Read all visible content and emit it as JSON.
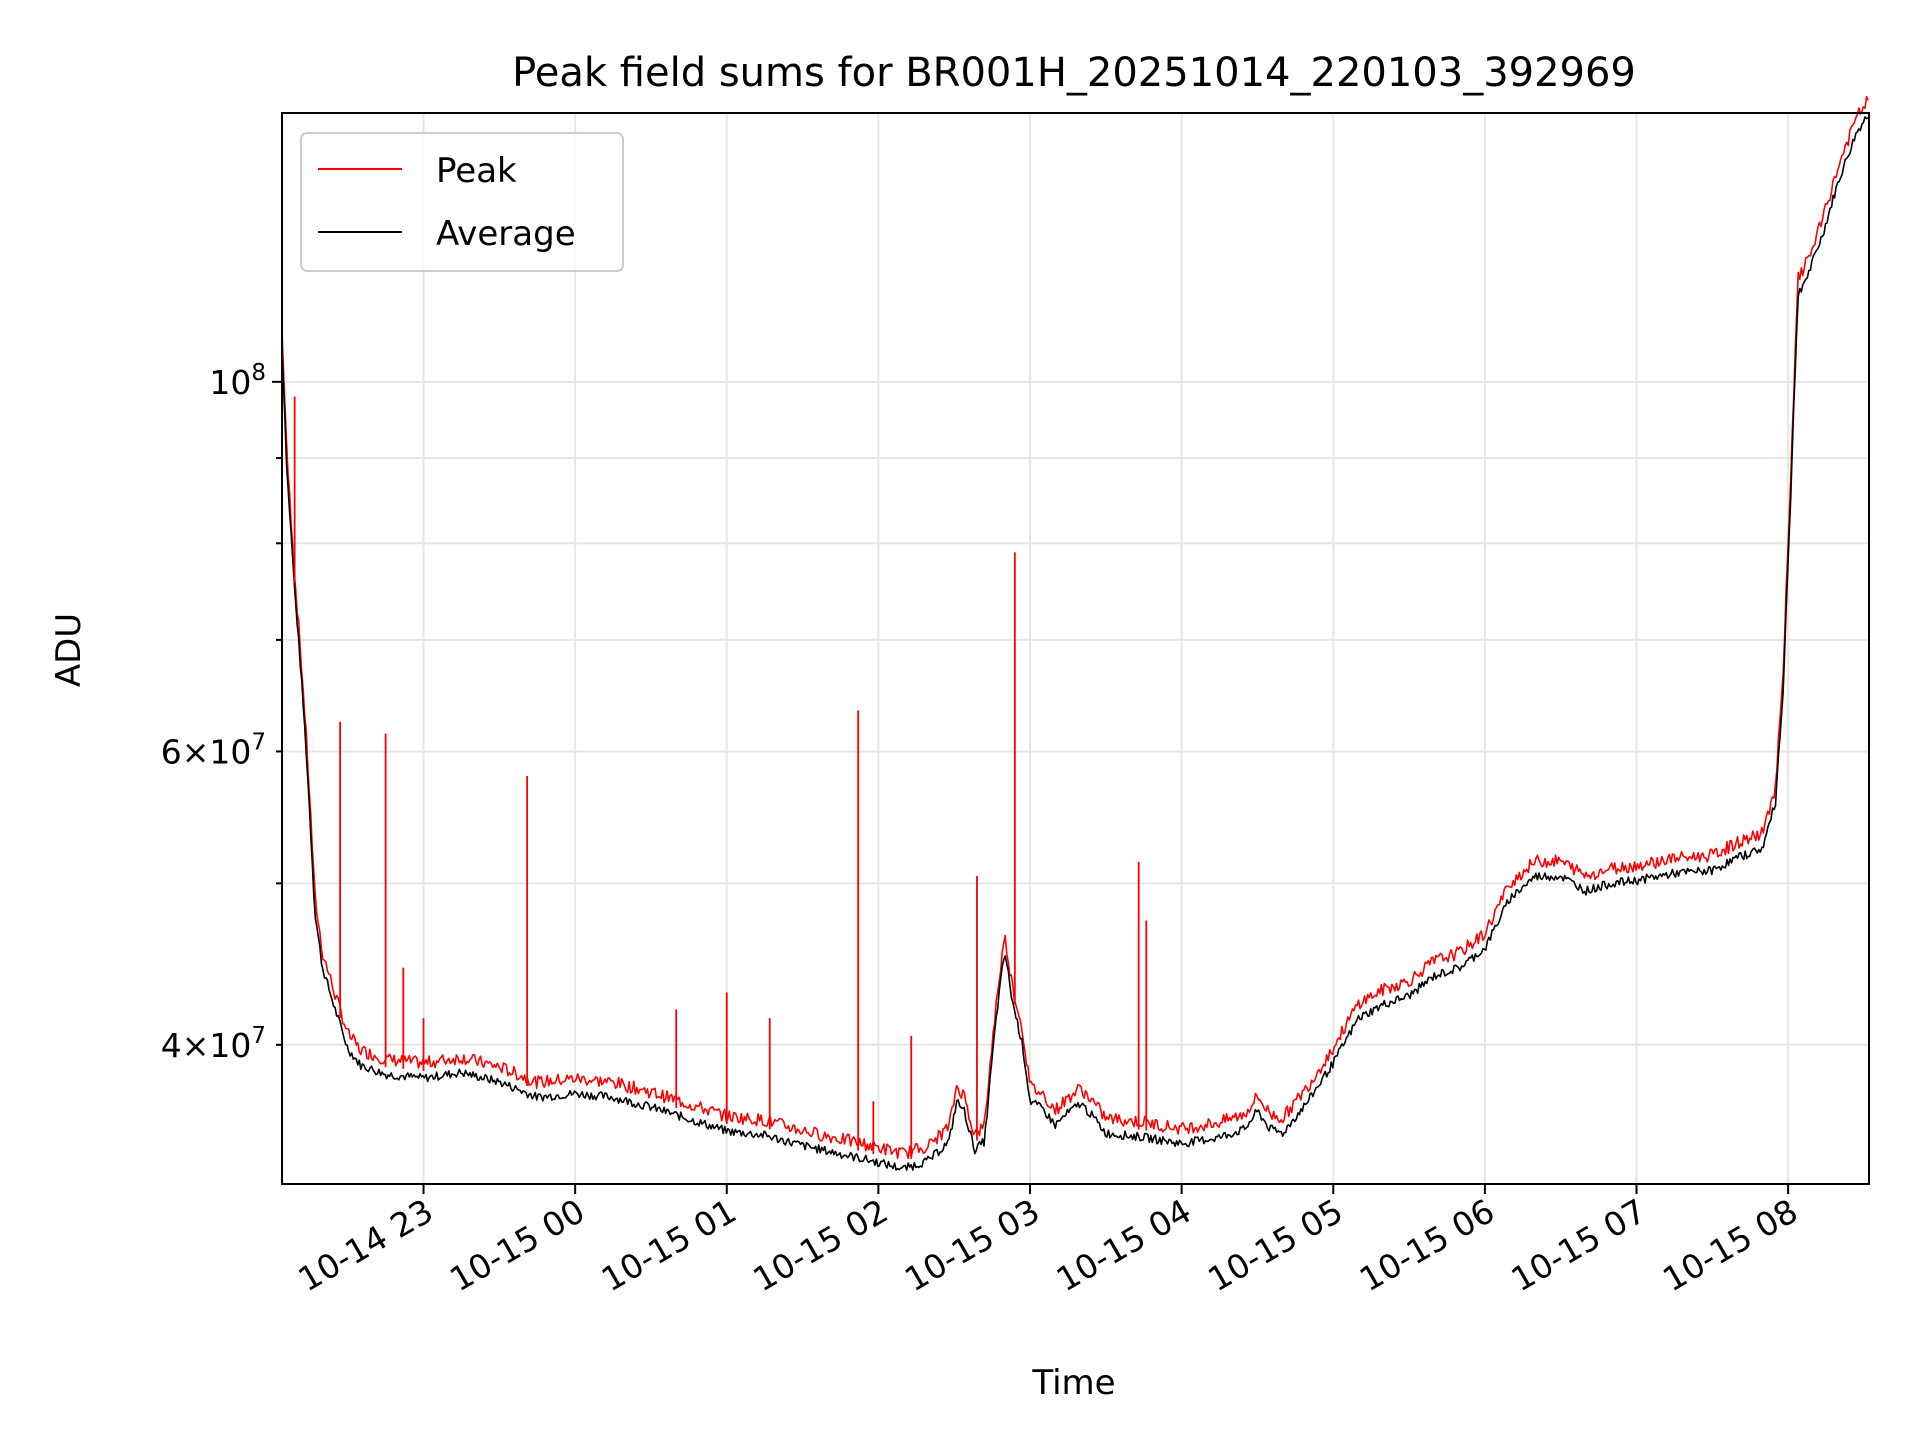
{
  "chart_data": {
    "type": "line",
    "title": "Peak field sums for BR001H_20251014_220103_392969",
    "xlabel": "Time",
    "ylabel": "ADU",
    "x_range": [
      "2025-10-14 22:04",
      "2025-10-15 08:32"
    ],
    "ylim": [
      33000000,
      145000000
    ],
    "yscale": "log",
    "grid": true,
    "legend_position": "upper-left",
    "x_ticks": [
      {
        "value": "2025-10-14 23:00",
        "label": "10-14 23"
      },
      {
        "value": "2025-10-15 00:00",
        "label": "10-15 00"
      },
      {
        "value": "2025-10-15 01:00",
        "label": "10-15 01"
      },
      {
        "value": "2025-10-15 02:00",
        "label": "10-15 02"
      },
      {
        "value": "2025-10-15 03:00",
        "label": "10-15 03"
      },
      {
        "value": "2025-10-15 04:00",
        "label": "10-15 04"
      },
      {
        "value": "2025-10-15 05:00",
        "label": "10-15 05"
      },
      {
        "value": "2025-10-15 06:00",
        "label": "10-15 06"
      },
      {
        "value": "2025-10-15 07:00",
        "label": "10-15 07"
      },
      {
        "value": "2025-10-15 08:00",
        "label": "10-15 08"
      }
    ],
    "y_major_ticks": [
      {
        "value": 100000000,
        "base": "10",
        "exp": "8"
      }
    ],
    "y_minor_ticks": [
      {
        "value": 40000000,
        "mant": "4",
        "exp": "7"
      },
      {
        "value": 60000000,
        "mant": "6",
        "exp": "7"
      }
    ],
    "y_minor_unlabeled": [
      50000000,
      70000000,
      80000000,
      90000000
    ],
    "series": [
      {
        "name": "Average",
        "color": "#000000",
        "points": [
          [
            "2025-10-14 22:04",
            105000000
          ],
          [
            "2025-10-14 22:06",
            88000000
          ],
          [
            "2025-10-14 22:09",
            75000000
          ],
          [
            "2025-10-14 22:13",
            62000000
          ],
          [
            "2025-10-14 22:17",
            48000000
          ],
          [
            "2025-10-14 22:20",
            44500000
          ],
          [
            "2025-10-14 22:25",
            42000000
          ],
          [
            "2025-10-14 22:30",
            39800000
          ],
          [
            "2025-10-14 22:35",
            38900000
          ],
          [
            "2025-10-14 22:45",
            38400000
          ],
          [
            "2025-10-14 23:00",
            38200000
          ],
          [
            "2025-10-14 23:15",
            38500000
          ],
          [
            "2025-10-14 23:30",
            38000000
          ],
          [
            "2025-10-14 23:45",
            37200000
          ],
          [
            "2025-10-15 00:00",
            37400000
          ],
          [
            "2025-10-15 00:15",
            37200000
          ],
          [
            "2025-10-15 00:30",
            36700000
          ],
          [
            "2025-10-15 00:45",
            36100000
          ],
          [
            "2025-10-15 01:00",
            35500000
          ],
          [
            "2025-10-15 01:15",
            35300000
          ],
          [
            "2025-10-15 01:30",
            34800000
          ],
          [
            "2025-10-15 01:45",
            34400000
          ],
          [
            "2025-10-15 02:00",
            34000000
          ],
          [
            "2025-10-15 02:10",
            33700000
          ],
          [
            "2025-10-15 02:20",
            34100000
          ],
          [
            "2025-10-15 02:28",
            35000000
          ],
          [
            "2025-10-15 02:31",
            37000000
          ],
          [
            "2025-10-15 02:34",
            36500000
          ],
          [
            "2025-10-15 02:38",
            34600000
          ],
          [
            "2025-10-15 02:42",
            35000000
          ],
          [
            "2025-10-15 02:47",
            42000000
          ],
          [
            "2025-10-15 02:50",
            45500000
          ],
          [
            "2025-10-15 02:53",
            42500000
          ],
          [
            "2025-10-15 02:57",
            40000000
          ],
          [
            "2025-10-15 03:00",
            37000000
          ],
          [
            "2025-10-15 03:05",
            36600000
          ],
          [
            "2025-10-15 03:10",
            35800000
          ],
          [
            "2025-10-15 03:15",
            36400000
          ],
          [
            "2025-10-15 03:20",
            36900000
          ],
          [
            "2025-10-15 03:25",
            36200000
          ],
          [
            "2025-10-15 03:30",
            35400000
          ],
          [
            "2025-10-15 03:45",
            35200000
          ],
          [
            "2025-10-15 04:00",
            34900000
          ],
          [
            "2025-10-15 04:15",
            35200000
          ],
          [
            "2025-10-15 04:25",
            35600000
          ],
          [
            "2025-10-15 04:30",
            36500000
          ],
          [
            "2025-10-15 04:35",
            35600000
          ],
          [
            "2025-10-15 04:40",
            35400000
          ],
          [
            "2025-10-15 04:50",
            37000000
          ],
          [
            "2025-10-15 05:00",
            39000000
          ],
          [
            "2025-10-15 05:10",
            41500000
          ],
          [
            "2025-10-15 05:20",
            42300000
          ],
          [
            "2025-10-15 05:30",
            42800000
          ],
          [
            "2025-10-15 05:40",
            44000000
          ],
          [
            "2025-10-15 05:50",
            44500000
          ],
          [
            "2025-10-15 06:00",
            45700000
          ],
          [
            "2025-10-15 06:10",
            49000000
          ],
          [
            "2025-10-15 06:20",
            50500000
          ],
          [
            "2025-10-15 06:30",
            50500000
          ],
          [
            "2025-10-15 06:40",
            49500000
          ],
          [
            "2025-10-15 06:50",
            50000000
          ],
          [
            "2025-10-15 07:00",
            50200000
          ],
          [
            "2025-10-15 07:15",
            50700000
          ],
          [
            "2025-10-15 07:30",
            50900000
          ],
          [
            "2025-10-15 07:40",
            51800000
          ],
          [
            "2025-10-15 07:50",
            52500000
          ],
          [
            "2025-10-15 07:55",
            56000000
          ],
          [
            "2025-10-15 07:58",
            65000000
          ],
          [
            "2025-10-15 08:01",
            85000000
          ],
          [
            "2025-10-15 08:04",
            113000000
          ],
          [
            "2025-10-15 08:08",
            116000000
          ],
          [
            "2025-10-15 08:14",
            123000000
          ],
          [
            "2025-10-15 08:20",
            132000000
          ],
          [
            "2025-10-15 08:27",
            141000000
          ],
          [
            "2025-10-15 08:32",
            145000000
          ]
        ]
      },
      {
        "name": "Peak",
        "color": "#ff0000",
        "spikes": [
          [
            "2025-10-14 22:04",
            114000000
          ],
          [
            "2025-10-14 22:09",
            98000000
          ],
          [
            "2025-10-14 22:27",
            62500000
          ],
          [
            "2025-10-14 22:45",
            61500000
          ],
          [
            "2025-10-14 22:52",
            44500000
          ],
          [
            "2025-10-14 23:00",
            41500000
          ],
          [
            "2025-10-14 23:41",
            58000000
          ],
          [
            "2025-10-15 01:52",
            63500000
          ],
          [
            "2025-10-15 02:39",
            50500000
          ],
          [
            "2025-10-15 02:54",
            79000000
          ],
          [
            "2025-10-15 03:43",
            51500000
          ],
          [
            "2025-10-15 03:46",
            47500000
          ],
          [
            "2025-10-15 01:00",
            43000000
          ],
          [
            "2025-10-15 01:17",
            41500000
          ],
          [
            "2025-10-15 00:40",
            42000000
          ],
          [
            "2025-10-15 02:13",
            40500000
          ],
          [
            "2025-10-15 01:58",
            37000000
          ]
        ]
      }
    ]
  }
}
